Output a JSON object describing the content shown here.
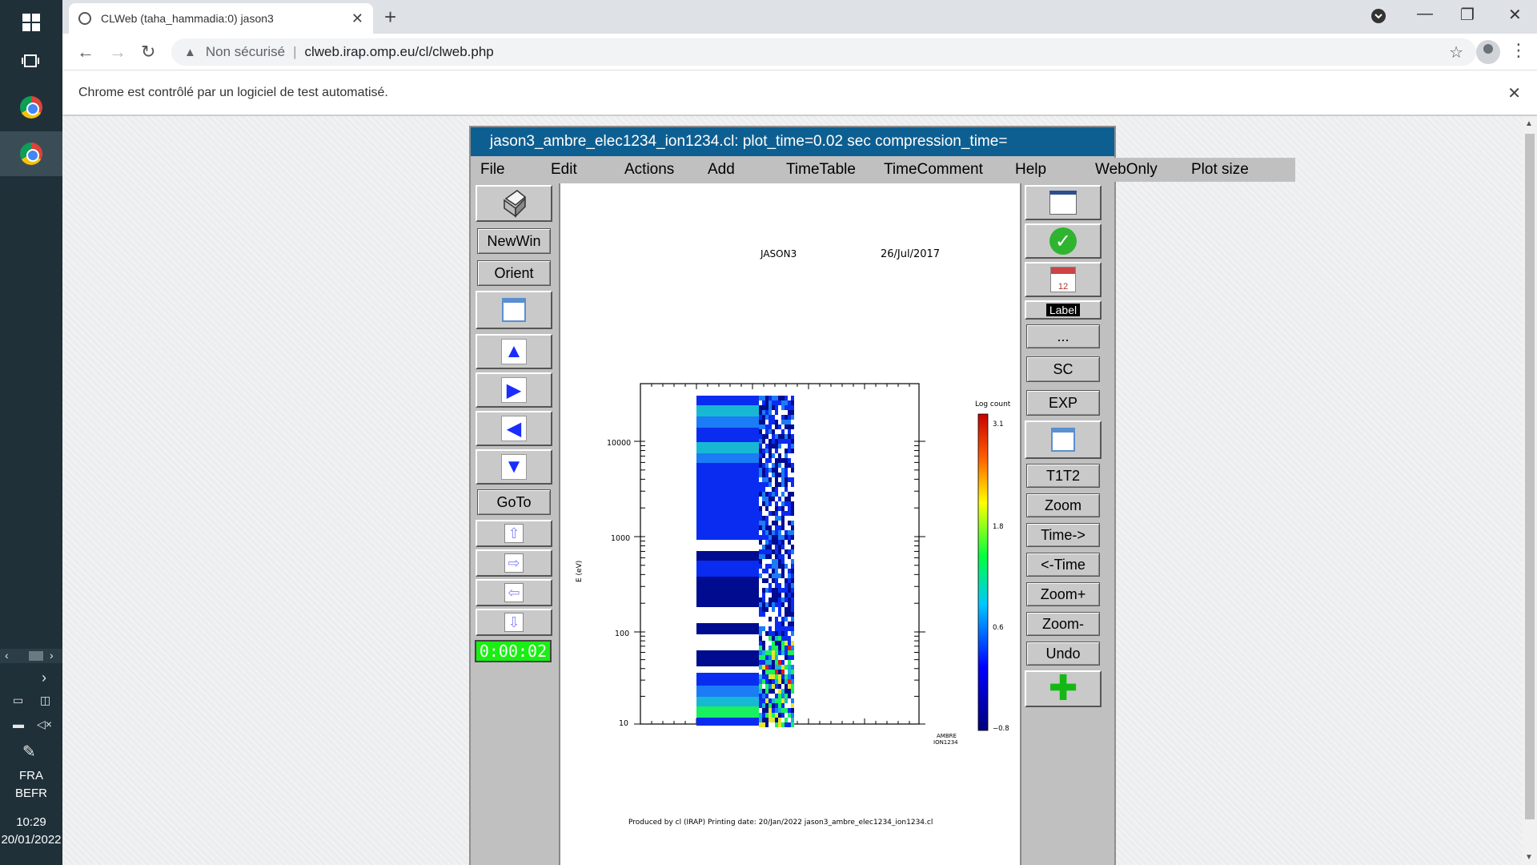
{
  "taskbar": {
    "language": "FRA",
    "layout": "BEFR",
    "time": "10:29",
    "date": "20/01/2022"
  },
  "browser": {
    "tab_title": "CLWeb (taha_hammadia:0) jason3",
    "not_secure": "Non sécurisé",
    "url": "clweb.irap.omp.eu/cl/clweb.php",
    "infobar": "Chrome est contrôlé par un logiciel de test automatisé."
  },
  "app": {
    "title": "jason3_ambre_elec1234_ion1234.cl:     plot_time=0.02 sec  compression_time=",
    "menu": [
      "File",
      "Edit",
      "Actions",
      "Add",
      "TimeTable",
      "TimeComment",
      "Help",
      "WebOnly",
      "Plot size"
    ],
    "left_buttons": {
      "newwin": "NewWin",
      "orient": "Orient",
      "goto": "GoTo",
      "timer": "0:00:02"
    },
    "right_buttons": {
      "label": "Label",
      "dots": "...",
      "sc": "SC",
      "exp": "EXP",
      "t1t2": "T1T2",
      "zoom": "Zoom",
      "time_fwd": "Time->",
      "time_back": "<-Time",
      "zoom_plus": "Zoom+",
      "zoom_minus": "Zoom-",
      "undo": "Undo"
    }
  },
  "plot": {
    "mission": "JASON3",
    "date": "26/Jul/2017",
    "ylabel": "E (eV)",
    "yticks": [
      "10000",
      "1000",
      "100",
      "10"
    ],
    "colorbar_title": "Log count",
    "colorbar_ticks": [
      "3.1",
      "1.8",
      "0.6",
      "−0.8"
    ],
    "instrument_line1": "AMBRE",
    "instrument_line2": "ION1234",
    "footer": "Produced by cl (IRAP)    Printing date: 20/Jan/2022    jason3_ambre_elec1234_ion1234.cl",
    "colors": {
      "dark_blue": "#000c8f",
      "blue": "#0a2cf0",
      "light_blue": "#1b7cf5",
      "cyan": "#17b8d4",
      "green": "#18f060",
      "yellow": "#e6e62a",
      "red": "#e21a1a"
    }
  }
}
